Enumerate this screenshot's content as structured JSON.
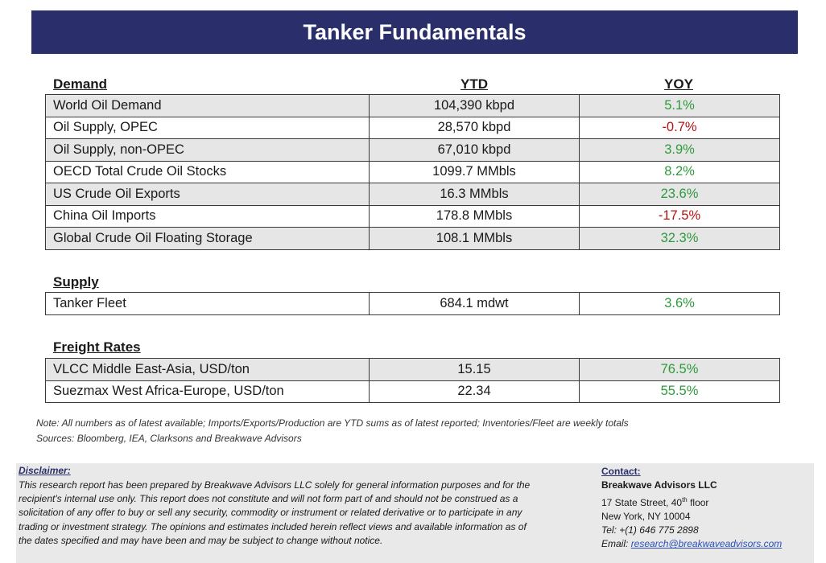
{
  "title": "Tanker Fundamentals",
  "columns": {
    "ytd": "YTD",
    "yoy": "YOY"
  },
  "demand": {
    "heading": "Demand",
    "rows": [
      {
        "label": "World Oil Demand",
        "ytd": "104,390 kbpd",
        "yoy": "5.1%"
      },
      {
        "label": "Oil Supply, OPEC",
        "ytd": "28,570 kbpd",
        "yoy": "-0.7%"
      },
      {
        "label": "Oil Supply, non-OPEC",
        "ytd": "67,010 kbpd",
        "yoy": "3.9%"
      },
      {
        "label": "OECD Total Crude Oil Stocks",
        "ytd": "1099.7 MMbls",
        "yoy": "8.2%"
      },
      {
        "label": "US Crude Oil Exports",
        "ytd": "16.3 MMbls",
        "yoy": "23.6%"
      },
      {
        "label": "China Oil Imports",
        "ytd": "178.8 MMbls",
        "yoy": "-17.5%"
      },
      {
        "label": "Global Crude Oil Floating Storage",
        "ytd": "108.1 MMbls",
        "yoy": "32.3%"
      }
    ]
  },
  "supply": {
    "heading": "Supply",
    "rows": [
      {
        "label": "Tanker Fleet",
        "ytd": "684.1 mdwt",
        "yoy": "3.6%"
      }
    ]
  },
  "freight": {
    "heading": "Freight Rates",
    "rows": [
      {
        "label": "VLCC Middle East-Asia, USD/ton",
        "ytd": "15.15",
        "yoy": "76.5%"
      },
      {
        "label": "Suezmax West Africa-Europe, USD/ton",
        "ytd": "22.34",
        "yoy": "55.5%"
      }
    ]
  },
  "note": "Note:  All numbers as of latest available; Imports/Exports/Production are YTD sums as of latest reported; Inventories/Fleet are weekly totals",
  "sources": "Sources: Bloomberg, IEA, Clarksons and Breakwave Advisors",
  "disclaimer": {
    "title": "Disclaimer:",
    "lines": [
      "This research report has been prepared by Breakwave Advisors LLC solely for general information purposes and for the",
      "recipient's internal use only. This report does not constitute and will not form part of and should not be construed as a",
      "solicitation of any offer to buy or sell any security, commodity or instrument or related derivative or to participate in any",
      "trading or investment strategy. The opinions and estimates included herein reflect views and available information as of",
      "the dates specified and may have been and may be subject to change without notice."
    ]
  },
  "contact": {
    "title": "Contact:",
    "company": "Breakwave Advisors LLC",
    "street_pre": "17 State Street, 40",
    "street_sup": "th",
    "street_post": " floor",
    "city": "New York, NY 10004",
    "tel": "Tel: +(1) 646 775 2898",
    "email_label": "Email: ",
    "email": "research@breakwaveadvisors.com"
  },
  "colors": {
    "banner": "#2a2f6b",
    "positive": "#2e9a3c",
    "negative": "#b31313",
    "shade": "#e6e6e6"
  }
}
